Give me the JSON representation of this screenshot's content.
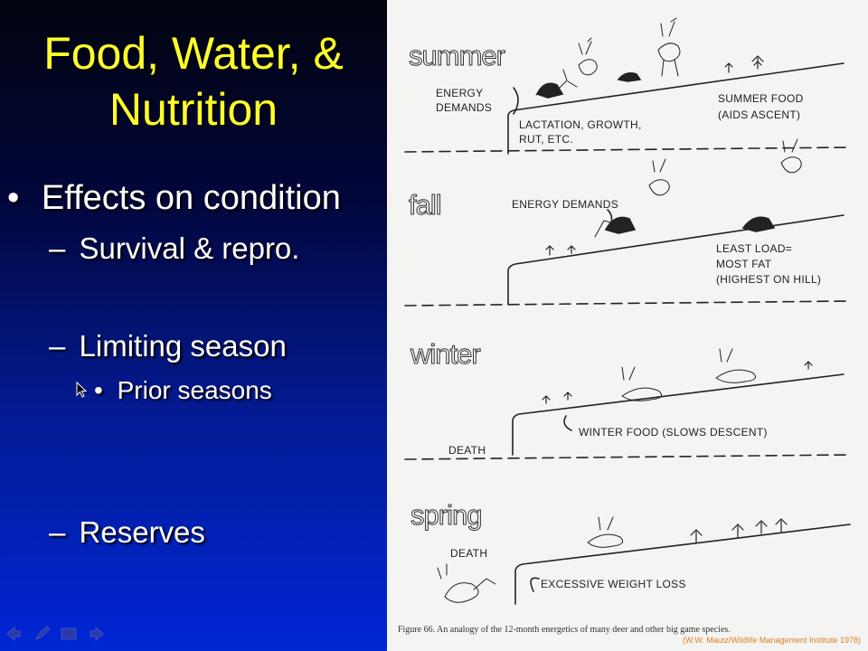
{
  "slide": {
    "title_lines": [
      "Food, Water, &",
      "Nutrition"
    ],
    "bullets": {
      "effects": "Effects on condition",
      "survival": "Survival & repro.",
      "limiting": "Limiting season",
      "prior": "Prior seasons",
      "reserves": "Reserves"
    },
    "bullet_glyph": "•",
    "dash_glyph": "–"
  },
  "figure": {
    "seasons": {
      "summer": "summer",
      "fall": "fall",
      "winter": "winter",
      "spring": "spring"
    },
    "labels": {
      "summer_energy_1": "ENERGY",
      "summer_energy_2": "DEMANDS",
      "summer_lact_1": "LACTATION, GROWTH,",
      "summer_lact_2": "RUT, ETC.",
      "summer_food_1": "SUMMER FOOD",
      "summer_food_2": "(AIDS ASCENT)",
      "fall_energy": "ENERGY DEMANDS",
      "fall_load_1": "LEAST LOAD=",
      "fall_load_2": "MOST FAT",
      "fall_load_3": "(HIGHEST ON HILL)",
      "winter_food": "WINTER FOOD (SLOWS DESCENT)",
      "winter_death": "DEATH",
      "spring_death": "DEATH",
      "spring_loss": "EXCESSIVE WEIGHT LOSS"
    },
    "caption": "Figure 66.  An analogy of the 12-month energetics of many deer and other big game species.",
    "credit": "(W.W. Mautz/Wildlife Management Institute 1978)"
  },
  "nav": {
    "icons": [
      "arrow-left-icon",
      "pen-icon",
      "slides-menu-icon",
      "arrow-right-icon"
    ]
  }
}
